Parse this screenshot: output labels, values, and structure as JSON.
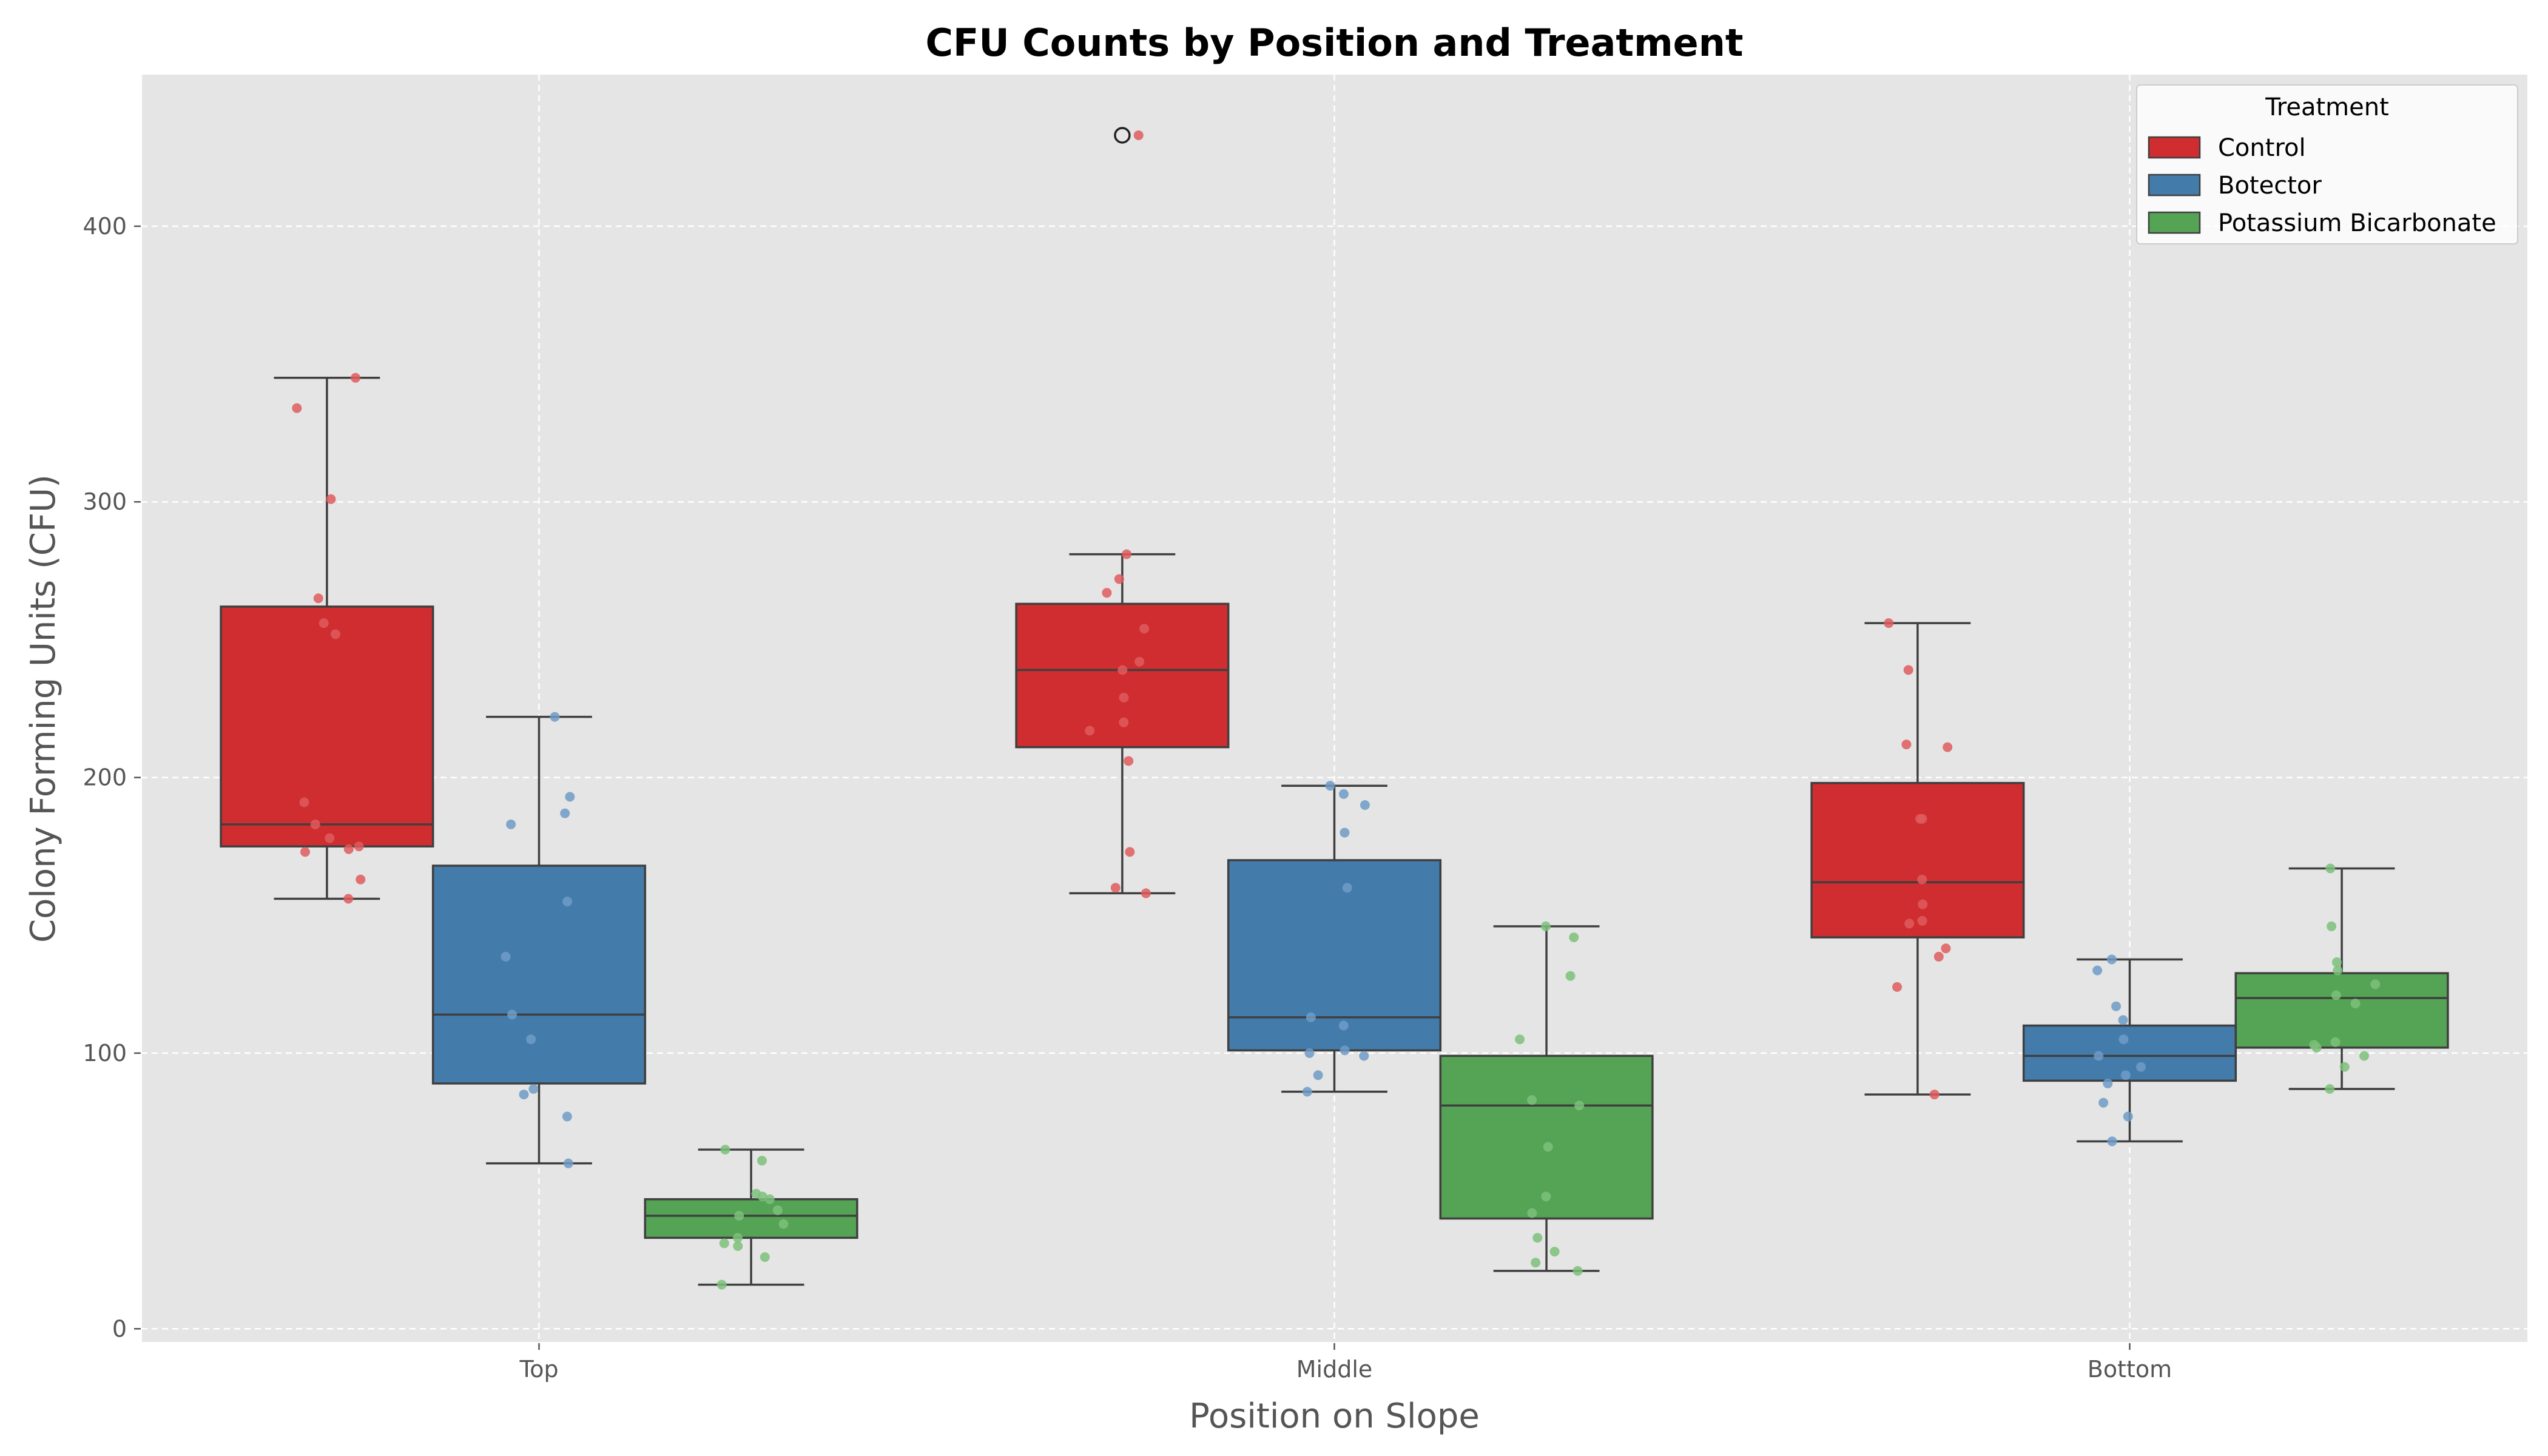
{
  "chart_data": {
    "type": "box",
    "title": "CFU Counts by Position and Treatment",
    "xlabel": "Position on Slope",
    "ylabel": "Colony Forming Units (CFU)",
    "ylim": [
      -5,
      455
    ],
    "yticks": [
      0,
      100,
      200,
      300,
      400
    ],
    "categories": [
      "Top",
      "Middle",
      "Bottom"
    ],
    "grid": true,
    "legend": {
      "title": "Treatment",
      "position": "top-right"
    },
    "series": [
      {
        "name": "Control",
        "color": "#CF2D2F",
        "point_color": "#DF5C5E",
        "boxes": [
          {
            "category": "Top",
            "whisker_low": 156,
            "q1": 175,
            "median": 183,
            "q3": 262,
            "whisker_high": 345,
            "outliers": []
          },
          {
            "category": "Middle",
            "whisker_low": 158,
            "q1": 211,
            "median": 239,
            "q3": 263,
            "whisker_high": 281,
            "outliers": [
              433
            ]
          },
          {
            "category": "Bottom",
            "whisker_low": 85,
            "q1": 142,
            "median": 162,
            "q3": 198,
            "whisker_high": 256,
            "outliers": []
          }
        ],
        "points": [
          [
            345,
            334,
            301,
            265,
            256,
            252,
            191,
            183,
            178,
            175,
            174,
            173,
            163,
            156
          ],
          [
            433,
            281,
            272,
            267,
            254,
            242,
            239,
            229,
            220,
            217,
            206,
            173,
            160,
            158
          ],
          [
            256,
            239,
            212,
            211,
            185,
            185,
            163,
            154,
            148,
            147,
            138,
            135,
            124,
            85
          ]
        ]
      },
      {
        "name": "Botector",
        "color": "#437BAB",
        "point_color": "#6E9CC7",
        "boxes": [
          {
            "category": "Top",
            "whisker_low": 60,
            "q1": 89,
            "median": 114,
            "q3": 168,
            "whisker_high": 222,
            "outliers": []
          },
          {
            "category": "Middle",
            "whisker_low": 86,
            "q1": 101,
            "median": 113,
            "q3": 170,
            "whisker_high": 197,
            "outliers": []
          },
          {
            "category": "Bottom",
            "whisker_low": 68,
            "q1": 90,
            "median": 99,
            "q3": 110,
            "whisker_high": 134,
            "outliers": []
          }
        ],
        "points": [
          [
            222,
            193,
            187,
            183,
            155,
            135,
            114,
            105,
            87,
            85,
            77,
            60
          ],
          [
            197,
            194,
            190,
            180,
            160,
            113,
            110,
            101,
            100,
            99,
            92,
            86
          ],
          [
            134,
            130,
            117,
            112,
            105,
            99,
            95,
            92,
            89,
            82,
            77,
            68
          ]
        ]
      },
      {
        "name": "Potassium Bicarbonate",
        "color": "#55A354",
        "point_color": "#7CC17B",
        "boxes": [
          {
            "category": "Top",
            "whisker_low": 16,
            "q1": 33,
            "median": 41,
            "q3": 47,
            "whisker_high": 65,
            "outliers": []
          },
          {
            "category": "Middle",
            "whisker_low": 21,
            "q1": 40,
            "median": 81,
            "q3": 99,
            "whisker_high": 146,
            "outliers": []
          },
          {
            "category": "Bottom",
            "whisker_low": 87,
            "q1": 102,
            "median": 120,
            "q3": 129,
            "whisker_high": 167,
            "outliers": []
          }
        ],
        "points": [
          [
            65,
            61,
            49,
            48,
            47,
            43,
            41,
            38,
            33,
            31,
            30,
            26,
            16
          ],
          [
            146,
            142,
            128,
            105,
            83,
            81,
            66,
            48,
            42,
            33,
            28,
            24,
            21
          ],
          [
            167,
            146,
            133,
            130,
            125,
            121,
            118,
            104,
            103,
            102,
            99,
            95,
            87
          ]
        ]
      }
    ]
  }
}
